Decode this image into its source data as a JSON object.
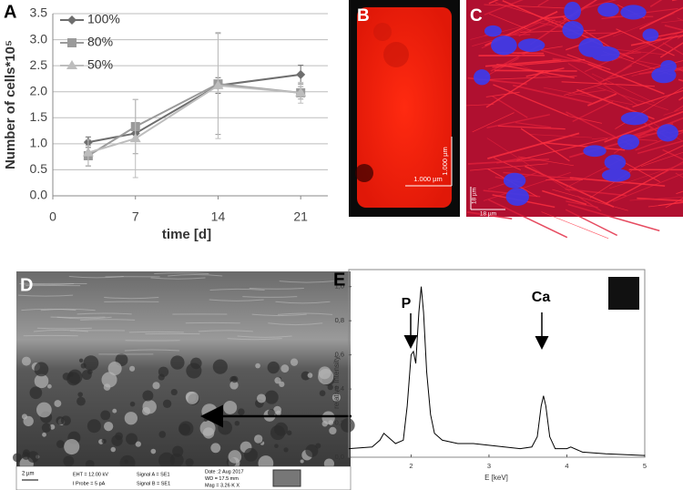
{
  "chart_data": [
    {
      "type": "line",
      "label": "A",
      "x_label": "time [d]",
      "y_label": "Number of cells*10⁵",
      "x": [
        3,
        7,
        14,
        21
      ],
      "xlim": [
        0,
        23.3
      ],
      "xticks": [
        0,
        7,
        14,
        21
      ],
      "ylim": [
        0,
        3.5
      ],
      "yticks": [
        {
          "value": 0,
          "label": "0.0"
        },
        0.5,
        {
          "value": 1,
          "label": "1.0"
        },
        1.5,
        {
          "value": 2,
          "label": "2.0"
        },
        2.5,
        {
          "value": 3,
          "label": "3.0"
        },
        3.5
      ],
      "grid": true,
      "legend": "upper left",
      "series": [
        {
          "name": "100%",
          "color": "#6e6e6e",
          "marker": "diamond",
          "values": [
            1.03,
            1.2,
            2.12,
            2.33
          ],
          "errors": [
            0.1,
            0.12,
            0.15,
            0.18
          ]
        },
        {
          "name": "80%",
          "color": "#9a9a9a",
          "marker": "square",
          "values": [
            0.77,
            1.33,
            2.15,
            1.98
          ],
          "errors": [
            0.2,
            0.52,
            0.97,
            0.12
          ]
        },
        {
          "name": "50%",
          "color": "#bdbdbd",
          "marker": "triangle",
          "values": [
            0.83,
            1.1,
            2.12,
            1.98
          ],
          "errors": [
            0.25,
            0.75,
            1.02,
            0.2
          ]
        }
      ]
    },
    {
      "type": "line",
      "label": "E",
      "x_label": "E [keV]",
      "y_label": "relative Intensity",
      "annotations": [
        "P",
        "Ca"
      ],
      "color": "#000000",
      "xlim": [
        1.2,
        5
      ],
      "xticks": [
        2,
        3,
        4,
        5
      ],
      "ylim": [
        0,
        1.1
      ],
      "yticks": [
        {
          "value": 0,
          "label": "0,0"
        },
        {
          "value": 0.2,
          "label": "0,2"
        },
        {
          "value": 0.4,
          "label": "0,4"
        },
        {
          "value": 0.6,
          "label": "0,6"
        },
        {
          "value": 0.8,
          "label": "0,8"
        },
        {
          "value": 1,
          "label": "1,0"
        }
      ],
      "x": [
        1.2,
        1.5,
        1.6,
        1.65,
        1.7,
        1.8,
        1.9,
        1.95,
        2.0,
        2.03,
        2.06,
        2.1,
        2.13,
        2.16,
        2.2,
        2.25,
        2.3,
        2.4,
        2.6,
        2.8,
        3.0,
        3.2,
        3.4,
        3.55,
        3.62,
        3.67,
        3.7,
        3.73,
        3.78,
        3.85,
        4.0,
        4.05,
        4.2,
        4.5,
        5.0
      ],
      "values": [
        0.05,
        0.06,
        0.1,
        0.14,
        0.12,
        0.08,
        0.1,
        0.3,
        0.6,
        0.62,
        0.55,
        0.85,
        1.0,
        0.85,
        0.5,
        0.25,
        0.14,
        0.1,
        0.08,
        0.08,
        0.07,
        0.06,
        0.05,
        0.06,
        0.12,
        0.3,
        0.36,
        0.3,
        0.12,
        0.05,
        0.05,
        0.06,
        0.03,
        0.02,
        0.01
      ]
    }
  ],
  "images": [
    {
      "label": "B",
      "scale_labels": [
        "1.000 µm",
        "1.000 µm"
      ]
    },
    {
      "label": "C",
      "scale_labels": [
        "18 µm",
        "18 µm"
      ]
    },
    {
      "label": "D",
      "scale_label": "2 µm",
      "info": [
        "EHT = 12.00 kV",
        "I Probe = 5 pA",
        "Signal A = SE1",
        "Signal B = SE1",
        "Date :2 Aug 2017",
        "WD = 17.5 mm",
        "Mag = 3.26 K X"
      ]
    }
  ]
}
